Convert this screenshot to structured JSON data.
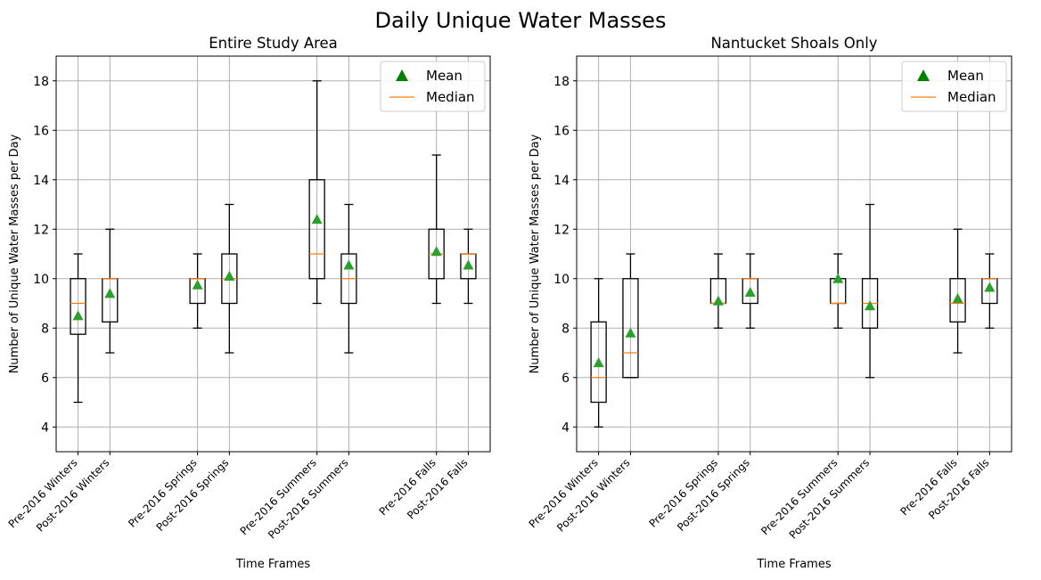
{
  "figure": {
    "title": "Daily Unique Water Masses"
  },
  "legend": {
    "mean_label": "Mean",
    "median_label": "Median",
    "placement": "top-right"
  },
  "colors": {
    "mean": "#2ca02c",
    "median": "#ff7f0e",
    "box": "#000000",
    "grid": "#b0b0b0"
  },
  "chart_data": [
    {
      "type": "box",
      "title": "Entire Study Area",
      "xlabel": "Time Frames",
      "ylabel": "Number of Unique Water Masses per Day",
      "ylim": [
        3,
        19
      ],
      "yticks": [
        4,
        6,
        8,
        10,
        12,
        14,
        16,
        18
      ],
      "grid": true,
      "categories": [
        "Pre-2016 Winters",
        "Post-2016 Winters",
        "Pre-2016 Springs",
        "Post-2016 Springs",
        "Pre-2016 Summers",
        "Post-2016 Summers",
        "Pre-2016 Falls",
        "Post-2016 Falls"
      ],
      "positions": [
        1,
        1.8,
        4,
        4.8,
        7,
        7.8,
        10,
        10.8
      ],
      "boxes": [
        {
          "whislo": 5,
          "q1": 7.75,
          "med": 9,
          "q3": 10,
          "whishi": 11,
          "mean": 8.5
        },
        {
          "whislo": 7,
          "q1": 8.25,
          "med": 10,
          "q3": 10,
          "whishi": 12,
          "mean": 9.4
        },
        {
          "whislo": 8,
          "q1": 9,
          "med": 10,
          "q3": 10,
          "whishi": 11,
          "mean": 9.75
        },
        {
          "whislo": 7,
          "q1": 9,
          "med": 10,
          "q3": 11,
          "whishi": 13,
          "mean": 10.1
        },
        {
          "whislo": 9,
          "q1": 10,
          "med": 11,
          "q3": 14,
          "whishi": 18,
          "mean": 12.4
        },
        {
          "whislo": 7,
          "q1": 9,
          "med": 10,
          "q3": 11,
          "whishi": 13,
          "mean": 10.55
        },
        {
          "whislo": 9,
          "q1": 10,
          "med": 11,
          "q3": 12,
          "whishi": 15,
          "mean": 11.1
        },
        {
          "whislo": 9,
          "q1": 10,
          "med": 11,
          "q3": 11,
          "whishi": 12,
          "mean": 10.55
        }
      ]
    },
    {
      "type": "box",
      "title": "Nantucket Shoals Only",
      "xlabel": "Time Frames",
      "ylabel": "Number of Unique Water Masses per Day",
      "ylim": [
        3,
        19
      ],
      "yticks": [
        4,
        6,
        8,
        10,
        12,
        14,
        16,
        18
      ],
      "grid": true,
      "categories": [
        "Pre-2016 Winters",
        "Post-2016 Winters",
        "Pre-2016 Springs",
        "Post-2016 Springs",
        "Pre-2016 Summers",
        "Post-2016 Summers",
        "Pre-2016 Falls",
        "Post-2016 Falls"
      ],
      "positions": [
        1,
        1.8,
        4,
        4.8,
        7,
        7.8,
        10,
        10.8
      ],
      "boxes": [
        {
          "whislo": 4,
          "q1": 5,
          "med": 6,
          "q3": 8.25,
          "whishi": 10,
          "mean": 6.6
        },
        {
          "whislo": 6,
          "q1": 6,
          "med": 7,
          "q3": 10,
          "whishi": 11,
          "mean": 7.8
        },
        {
          "whislo": 8,
          "q1": 9,
          "med": 9,
          "q3": 10,
          "whishi": 11,
          "mean": 9.1
        },
        {
          "whislo": 8,
          "q1": 9,
          "med": 10,
          "q3": 10,
          "whishi": 11,
          "mean": 9.45
        },
        {
          "whislo": 8,
          "q1": 9,
          "med": 9,
          "q3": 10,
          "whishi": 11,
          "mean": 10
        },
        {
          "whislo": 6,
          "q1": 8,
          "med": 9,
          "q3": 10,
          "whishi": 13,
          "mean": 8.9
        },
        {
          "whislo": 7,
          "q1": 8.25,
          "med": 9,
          "q3": 10,
          "whishi": 12,
          "mean": 9.2
        },
        {
          "whislo": 8,
          "q1": 9,
          "med": 10,
          "q3": 10,
          "whishi": 11,
          "mean": 9.65
        }
      ]
    }
  ]
}
